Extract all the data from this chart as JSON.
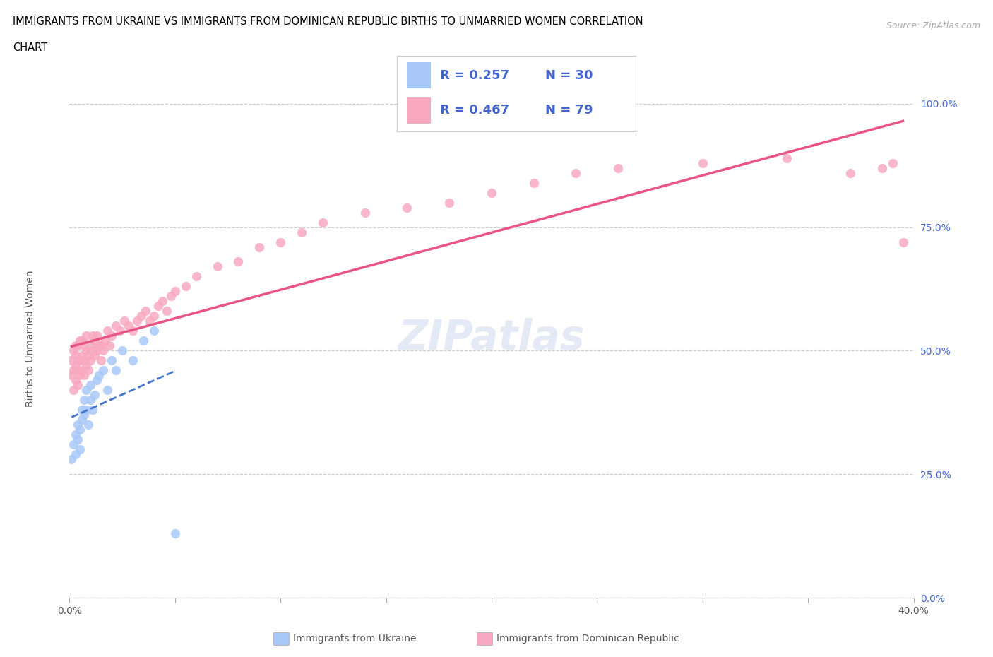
{
  "title_line1": "IMMIGRANTS FROM UKRAINE VS IMMIGRANTS FROM DOMINICAN REPUBLIC BIRTHS TO UNMARRIED WOMEN CORRELATION",
  "title_line2": "CHART",
  "source": "Source: ZipAtlas.com",
  "ylabel": "Births to Unmarried Women",
  "xlabel_ukraine": "Immigrants from Ukraine",
  "xlabel_dr": "Immigrants from Dominican Republic",
  "xlim": [
    0.0,
    0.4
  ],
  "ylim": [
    0.0,
    1.05
  ],
  "yticks": [
    0.0,
    0.25,
    0.5,
    0.75,
    1.0
  ],
  "ytick_labels": [
    "0.0%",
    "25.0%",
    "50.0%",
    "75.0%",
    "100.0%"
  ],
  "ukraine_color": "#a8c8f8",
  "dr_color": "#f8a8c0",
  "ukraine_line_color": "#4477cc",
  "dr_line_color": "#e85585",
  "legend_text_color": "#4466cc",
  "R_ukraine": 0.257,
  "N_ukraine": 30,
  "R_dr": 0.467,
  "N_dr": 79,
  "ukraine_x": [
    0.001,
    0.002,
    0.003,
    0.003,
    0.004,
    0.004,
    0.005,
    0.005,
    0.006,
    0.006,
    0.007,
    0.007,
    0.008,
    0.008,
    0.009,
    0.01,
    0.01,
    0.011,
    0.012,
    0.013,
    0.014,
    0.016,
    0.018,
    0.02,
    0.022,
    0.025,
    0.03,
    0.035,
    0.04,
    0.05
  ],
  "ukraine_y": [
    0.28,
    0.31,
    0.29,
    0.33,
    0.32,
    0.35,
    0.3,
    0.34,
    0.36,
    0.38,
    0.37,
    0.4,
    0.38,
    0.42,
    0.35,
    0.4,
    0.43,
    0.38,
    0.41,
    0.44,
    0.45,
    0.46,
    0.42,
    0.48,
    0.46,
    0.5,
    0.48,
    0.52,
    0.54,
    0.13
  ],
  "dr_x": [
    0.001,
    0.001,
    0.002,
    0.002,
    0.002,
    0.003,
    0.003,
    0.003,
    0.003,
    0.004,
    0.004,
    0.004,
    0.004,
    0.005,
    0.005,
    0.005,
    0.006,
    0.006,
    0.006,
    0.007,
    0.007,
    0.007,
    0.008,
    0.008,
    0.008,
    0.009,
    0.009,
    0.01,
    0.01,
    0.011,
    0.011,
    0.012,
    0.012,
    0.013,
    0.013,
    0.014,
    0.015,
    0.015,
    0.016,
    0.017,
    0.018,
    0.019,
    0.02,
    0.022,
    0.024,
    0.026,
    0.028,
    0.03,
    0.032,
    0.034,
    0.036,
    0.038,
    0.04,
    0.042,
    0.044,
    0.046,
    0.048,
    0.05,
    0.055,
    0.06,
    0.07,
    0.08,
    0.09,
    0.1,
    0.11,
    0.12,
    0.14,
    0.16,
    0.18,
    0.2,
    0.22,
    0.24,
    0.26,
    0.3,
    0.34,
    0.37,
    0.385,
    0.39,
    0.395
  ],
  "dr_y": [
    0.45,
    0.48,
    0.42,
    0.46,
    0.5,
    0.44,
    0.47,
    0.49,
    0.51,
    0.43,
    0.46,
    0.48,
    0.51,
    0.45,
    0.48,
    0.52,
    0.46,
    0.49,
    0.52,
    0.45,
    0.48,
    0.51,
    0.47,
    0.5,
    0.53,
    0.46,
    0.49,
    0.48,
    0.51,
    0.5,
    0.53,
    0.49,
    0.52,
    0.5,
    0.53,
    0.51,
    0.48,
    0.51,
    0.5,
    0.52,
    0.54,
    0.51,
    0.53,
    0.55,
    0.54,
    0.56,
    0.55,
    0.54,
    0.56,
    0.57,
    0.58,
    0.56,
    0.57,
    0.59,
    0.6,
    0.58,
    0.61,
    0.62,
    0.63,
    0.65,
    0.67,
    0.68,
    0.71,
    0.72,
    0.74,
    0.76,
    0.78,
    0.79,
    0.8,
    0.82,
    0.84,
    0.86,
    0.87,
    0.88,
    0.89,
    0.86,
    0.87,
    0.88,
    0.72
  ],
  "hline_color": "#cccccc",
  "grid_color": "#e5e5e5",
  "bg_color": "#ffffff"
}
